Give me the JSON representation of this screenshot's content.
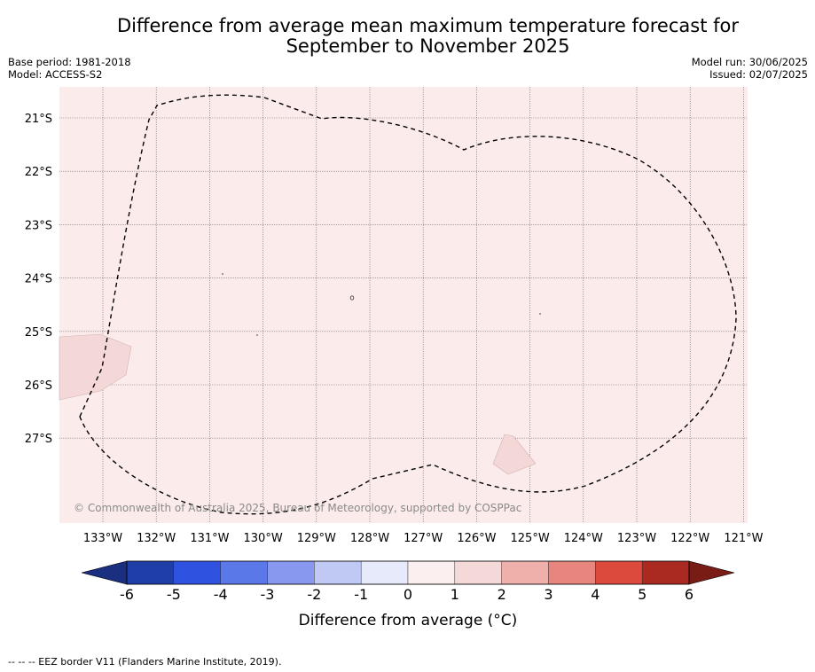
{
  "title_line1": "Difference from average mean maximum temperature forecast for",
  "title_line2": "September to November 2025",
  "base_period": "Base period: 1981-2018",
  "model": "Model: ACCESS-S2",
  "model_run": "Model run: 30/06/2025",
  "issued": "Issued: 02/07/2025",
  "copyright": "© Commonwealth of Australia 2025, Bureau of Meteorology, supported by COSPPac",
  "lat_labels": [
    "21°S",
    "22°S",
    "23°S",
    "24°S",
    "25°S",
    "26°S",
    "27°S"
  ],
  "lon_labels": [
    "133°W",
    "132°W",
    "131°W",
    "130°W",
    "129°W",
    "128°W",
    "127°W",
    "126°W",
    "125°W",
    "124°W",
    "123°W",
    "122°W",
    "121°W"
  ],
  "colorbar": {
    "title": "Difference from average (°C)",
    "ticks": [
      "-6",
      "-5",
      "-4",
      "-3",
      "-2",
      "-1",
      "0",
      "1",
      "2",
      "3",
      "4",
      "5",
      "6"
    ],
    "colors": [
      "#1f3ea8",
      "#2f52e0",
      "#5a78e8",
      "#8798ee",
      "#c0c8f4",
      "#e6eafa",
      "#fcefef",
      "#f5d9d8",
      "#efb0ac",
      "#e8857f",
      "#dc4a3e",
      "#aa2a22"
    ],
    "under_color": "#1a2f80",
    "over_color": "#7a1c16"
  },
  "map": {
    "background": "#fbeceb",
    "land_color": "#f3d8d7"
  },
  "legend_note": "-- -- -- EEZ border V11 (Flanders Marine Institute, 2019)."
}
